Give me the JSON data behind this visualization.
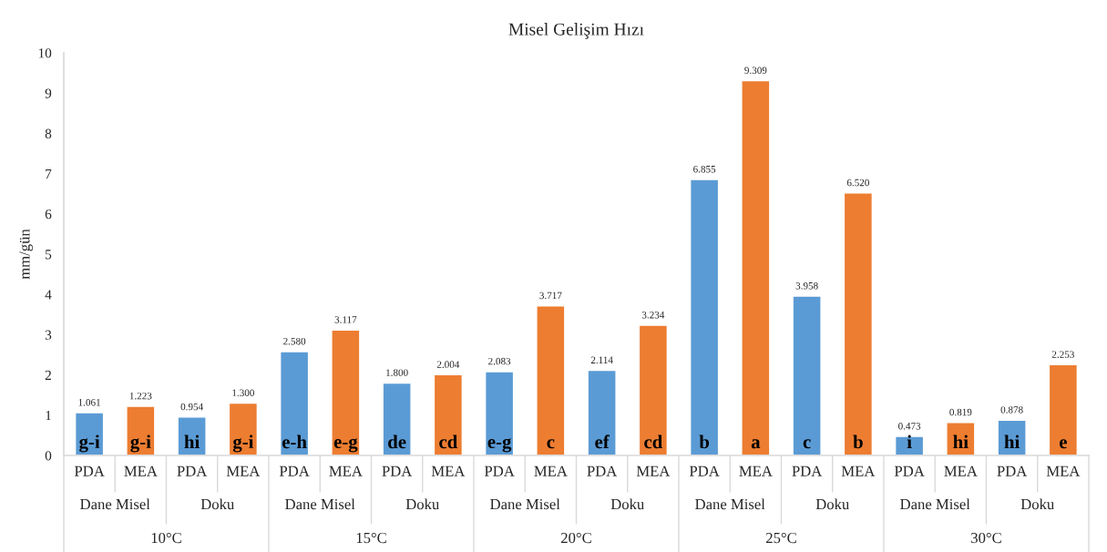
{
  "chart_data": {
    "type": "bar",
    "title": "Misel Gelişim Hızı",
    "ylabel": "mm/gün",
    "categories": [
      "PDA",
      "MEA",
      "PDA",
      "MEA",
      "PDA",
      "MEA",
      "PDA",
      "MEA",
      "PDA",
      "MEA",
      "PDA",
      "MEA",
      "PDA",
      "MEA",
      "PDA",
      "MEA",
      "PDA",
      "MEA",
      "PDA",
      "MEA"
    ],
    "values": [
      1.061,
      1.223,
      0.954,
      1.3,
      2.58,
      3.117,
      1.8,
      2.004,
      2.083,
      3.717,
      2.114,
      3.234,
      6.855,
      9.309,
      3.958,
      6.52,
      0.473,
      0.819,
      0.878,
      2.253
    ],
    "value_labels": [
      "1.061",
      "1.223",
      "0.954",
      "1.300",
      "2.580",
      "3.117",
      "1.800",
      "2.004",
      "2.083",
      "3.717",
      "2.114",
      "3.234",
      "6.855",
      "9.309",
      "3.958",
      "6.520",
      "0.473",
      "0.819",
      "0.878",
      "2.253"
    ],
    "colors": [
      "#5b9bd5",
      "#ed7d31",
      "#5b9bd5",
      "#ed7d31",
      "#5b9bd5",
      "#ed7d31",
      "#5b9bd5",
      "#ed7d31",
      "#5b9bd5",
      "#ed7d31",
      "#5b9bd5",
      "#ed7d31",
      "#5b9bd5",
      "#ed7d31",
      "#5b9bd5",
      "#ed7d31",
      "#5b9bd5",
      "#ed7d31",
      "#5b9bd5",
      "#ed7d31"
    ],
    "annotations": [
      "g-i",
      "g-i",
      "hi",
      "g-i",
      "e-h",
      "e-g",
      "de",
      "cd",
      "e-g",
      "c",
      "ef",
      "cd",
      "b",
      "a",
      "c",
      "b",
      "i",
      "hi",
      "hi",
      "e",
      "Dane Misel",
      "Doku",
      "Dane Misel",
      "Doku",
      "Dane Misel",
      "Doku",
      "Dane Misel",
      "Doku",
      "Dane Misel",
      "Doku",
      "10°C",
      "15°C",
      "20°C",
      "25°C",
      "30°C"
    ],
    "ylim": [
      0,
      10
    ],
    "yticks": [
      0,
      1,
      2,
      3,
      4,
      5,
      6,
      7,
      8,
      9,
      10
    ],
    "grid": false,
    "legend": false
  }
}
